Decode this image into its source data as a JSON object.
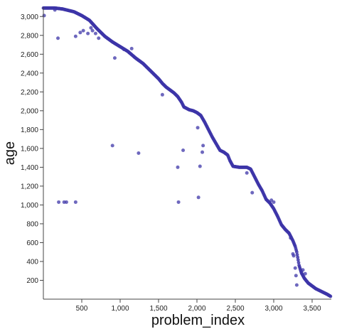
{
  "chart_data": {
    "type": "scatter",
    "title": "",
    "xlabel": "problem_index",
    "ylabel": "age",
    "xlim": [
      0,
      3750
    ],
    "ylim": [
      0,
      3100
    ],
    "x_ticks": [
      500,
      1000,
      1500,
      2000,
      2500,
      3000,
      3500
    ],
    "x_tick_labels": [
      "500",
      "1,000",
      "1,500",
      "2,000",
      "2,500",
      "3,000",
      "3,500"
    ],
    "y_ticks": [
      200,
      400,
      600,
      800,
      1000,
      1200,
      1400,
      1600,
      1800,
      2000,
      2200,
      2400,
      2600,
      2800,
      3000
    ],
    "y_tick_labels": [
      "200",
      "400",
      "600",
      "800",
      "1,000",
      "1,200",
      "1,400",
      "1,600",
      "1,800",
      "2,000",
      "2,200",
      "2,400",
      "2,600",
      "2,800",
      "3,000"
    ],
    "grid": false,
    "marker_color": "#3d35a8",
    "main_curve": [
      [
        0,
        3090
      ],
      [
        150,
        3090
      ],
      [
        250,
        3080
      ],
      [
        400,
        3050
      ],
      [
        500,
        3010
      ],
      [
        600,
        2960
      ],
      [
        700,
        2870
      ],
      [
        800,
        2790
      ],
      [
        900,
        2730
      ],
      [
        1000,
        2680
      ],
      [
        1100,
        2630
      ],
      [
        1200,
        2560
      ],
      [
        1300,
        2500
      ],
      [
        1400,
        2420
      ],
      [
        1500,
        2340
      ],
      [
        1550,
        2290
      ],
      [
        1600,
        2250
      ],
      [
        1650,
        2220
      ],
      [
        1700,
        2190
      ],
      [
        1750,
        2150
      ],
      [
        1800,
        2090
      ],
      [
        1830,
        2040
      ],
      [
        1900,
        2010
      ],
      [
        1950,
        2000
      ],
      [
        2000,
        1980
      ],
      [
        2050,
        1950
      ],
      [
        2100,
        1880
      ],
      [
        2150,
        1800
      ],
      [
        2200,
        1720
      ],
      [
        2250,
        1650
      ],
      [
        2300,
        1580
      ],
      [
        2350,
        1560
      ],
      [
        2400,
        1530
      ],
      [
        2430,
        1470
      ],
      [
        2470,
        1410
      ],
      [
        2550,
        1400
      ],
      [
        2650,
        1400
      ],
      [
        2700,
        1380
      ],
      [
        2750,
        1300
      ],
      [
        2800,
        1220
      ],
      [
        2850,
        1150
      ],
      [
        2900,
        1060
      ],
      [
        2950,
        1020
      ],
      [
        3000,
        960
      ],
      [
        3050,
        880
      ],
      [
        3100,
        790
      ],
      [
        3150,
        740
      ],
      [
        3200,
        700
      ],
      [
        3250,
        620
      ],
      [
        3280,
        560
      ],
      [
        3300,
        500
      ],
      [
        3330,
        360
      ],
      [
        3360,
        280
      ],
      [
        3400,
        220
      ],
      [
        3450,
        170
      ],
      [
        3500,
        140
      ],
      [
        3550,
        110
      ],
      [
        3600,
        90
      ],
      [
        3650,
        70
      ],
      [
        3700,
        50
      ],
      [
        3740,
        30
      ]
    ],
    "outliers": [
      [
        10,
        3010
      ],
      [
        150,
        3070
      ],
      [
        190,
        2770
      ],
      [
        200,
        1030
      ],
      [
        270,
        1030
      ],
      [
        300,
        1030
      ],
      [
        420,
        1030
      ],
      [
        420,
        2790
      ],
      [
        480,
        2830
      ],
      [
        520,
        2850
      ],
      [
        580,
        2820
      ],
      [
        620,
        2880
      ],
      [
        640,
        2850
      ],
      [
        680,
        2820
      ],
      [
        720,
        2770
      ],
      [
        900,
        1630
      ],
      [
        930,
        2560
      ],
      [
        1050,
        2650
      ],
      [
        1150,
        2660
      ],
      [
        1240,
        1550
      ],
      [
        1550,
        2170
      ],
      [
        1750,
        1400
      ],
      [
        1760,
        1030
      ],
      [
        1820,
        1580
      ],
      [
        2010,
        1820
      ],
      [
        2020,
        1080
      ],
      [
        2040,
        1410
      ],
      [
        2070,
        1560
      ],
      [
        2080,
        1630
      ],
      [
        2650,
        1340
      ],
      [
        2720,
        1130
      ],
      [
        2970,
        1050
      ],
      [
        3000,
        1030
      ],
      [
        3220,
        650
      ],
      [
        3250,
        480
      ],
      [
        3260,
        460
      ],
      [
        3280,
        330
      ],
      [
        3290,
        250
      ],
      [
        3300,
        150
      ],
      [
        3360,
        290
      ],
      [
        3380,
        310
      ],
      [
        3410,
        270
      ]
    ]
  }
}
